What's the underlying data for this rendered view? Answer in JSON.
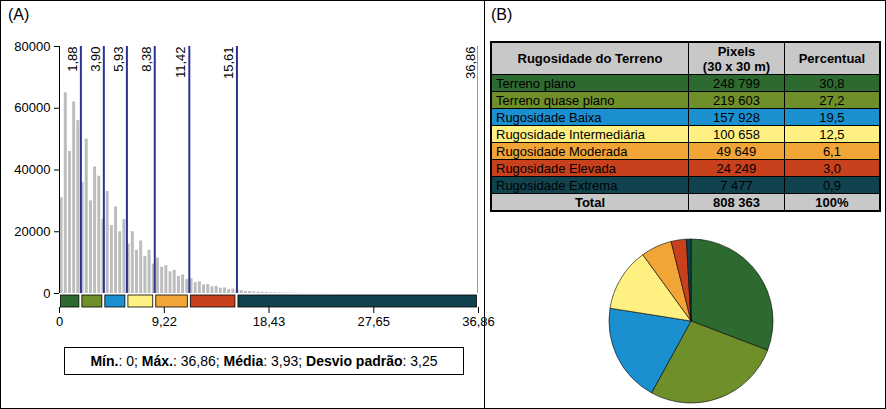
{
  "chart_data": [
    {
      "type": "histogram",
      "panel_label": "(A)",
      "bins": [
        0,
        0.3686,
        0.7372,
        1.1058,
        1.4744,
        1.843,
        2.2116,
        2.5802,
        2.9488,
        3.3174,
        3.686,
        4.0546,
        4.4232,
        4.7918,
        5.1604,
        5.529,
        5.8976,
        6.2662,
        6.6348,
        7.0034,
        7.372,
        7.7406,
        8.1092,
        8.4778,
        8.8464,
        9.215,
        9.5836,
        9.9522,
        10.3208,
        10.6894,
        11.058,
        11.4266,
        11.7952,
        12.1638,
        12.5324,
        12.901,
        13.2696,
        13.6382,
        14.0068,
        14.3754,
        14.744,
        15.1126,
        15.4812,
        15.8498,
        16.2184,
        16.587,
        16.9556,
        17.3242,
        17.6928,
        18.0614,
        18.43,
        18.7986,
        19.1672,
        19.5358,
        19.9044,
        20.273,
        20.6416,
        21.0102,
        21.3788,
        21.7474,
        22.116,
        22.4846,
        22.8532,
        23.2218,
        23.5904,
        23.959,
        24.3276,
        24.6962,
        25.0648,
        25.4334,
        25.802,
        26.1706,
        26.5392,
        26.9078,
        27.2764,
        27.645,
        28.0136,
        28.3822,
        28.7508,
        29.1194,
        29.488,
        29.8566,
        30.2252,
        30.5938,
        30.9624,
        31.331,
        31.6996,
        32.0682,
        32.4368,
        32.8054,
        33.174,
        33.5426,
        33.9112,
        34.2798,
        34.6484,
        35.017,
        35.3856,
        35.7542,
        36.1228,
        36.4914,
        36.86
      ],
      "counts": [
        31000,
        65000,
        46000,
        62000,
        56000,
        36000,
        50000,
        30000,
        41000,
        38000,
        24000,
        33000,
        22000,
        28000,
        20000,
        24000,
        16000,
        20000,
        14000,
        17000,
        12000,
        14000,
        9500,
        11500,
        8500,
        9000,
        7000,
        7500,
        5500,
        6000,
        4500,
        4800,
        3500,
        3800,
        2800,
        2900,
        2200,
        2300,
        1700,
        1800,
        1300,
        1400,
        1000,
        950,
        700,
        650,
        500,
        450,
        350,
        320,
        250,
        220,
        180,
        150,
        130,
        110,
        90,
        80,
        70,
        60,
        50,
        45,
        40,
        35,
        30,
        25,
        22,
        20,
        18,
        15,
        13,
        12,
        10,
        9,
        8,
        7,
        6,
        5,
        5,
        4,
        4,
        3,
        3,
        3,
        2,
        2,
        2,
        2,
        1,
        1,
        1,
        1,
        1,
        1,
        1,
        1,
        1,
        0,
        0,
        1
      ],
      "color": "#bdbdbd",
      "xlim": [
        0,
        36.86
      ],
      "xticks": [
        0,
        {
          "value": 9.22,
          "label": "9,22"
        },
        {
          "value": 18.43,
          "label": "18,43"
        },
        {
          "value": 27.65,
          "label": "27,65"
        },
        {
          "value": 36.86,
          "label": "36,86"
        }
      ],
      "ylim": [
        0,
        80000
      ],
      "yticks": [
        0,
        20000,
        40000,
        60000,
        80000
      ],
      "breaks": [
        {
          "value": 1.88,
          "label": "1,88"
        },
        {
          "value": 3.9,
          "label": "3,90"
        },
        {
          "value": 5.93,
          "label": "5,93"
        },
        {
          "value": 8.38,
          "label": "8,38"
        },
        {
          "value": 11.42,
          "label": "11,42"
        },
        {
          "value": 15.61,
          "label": "15,61"
        },
        {
          "value": 36.86,
          "label": "36,86"
        }
      ],
      "colors": [
        "#2d6a2f",
        "#6f8f2a",
        "#1a90d0",
        "#fff082",
        "#f0a536",
        "#c9411c",
        "#11434f"
      ],
      "stats": {
        "text": "Mín.: 0; Máx.: 36,86; Média: 3,93; Desvio padrão: 3,25",
        "bold": [
          "Mín.",
          "Máx.",
          "Média",
          "Desvio padrão"
        ]
      }
    },
    {
      "type": "pie",
      "panel_label": "(B)",
      "categories": [
        "Terreno plano",
        "Terreno quase plano",
        "Rugosidade Baixa",
        "Rugosidade Intermediária",
        "Rugosidade Moderada",
        "Rugosidade Elevada",
        "Rugosidade Extrema"
      ],
      "values": [
        30.8,
        27.2,
        19.5,
        12.5,
        6.1,
        3.0,
        0.9
      ],
      "value_labels": [
        "30,8",
        "27,2",
        "19,5",
        "12,5",
        "6,1",
        "3,0",
        "0,9"
      ],
      "colors": [
        "#2d6a2f",
        "#6f8f2a",
        "#1a90d0",
        "#fff082",
        "#f0a536",
        "#c9411c",
        "#11434f"
      ],
      "data_labels": false,
      "table": {
        "header": [
          "Rugosidade do Terreno",
          [
            "Pixels",
            "(30 x 30 m)"
          ],
          "Percentual"
        ],
        "pixels": [
          "248 799",
          "219 603",
          "157 928",
          "100 658",
          "49 649",
          "24 249",
          "7 477"
        ],
        "total": {
          "label": "Total",
          "pixels": "808 363",
          "percent": "100%"
        }
      }
    }
  ]
}
